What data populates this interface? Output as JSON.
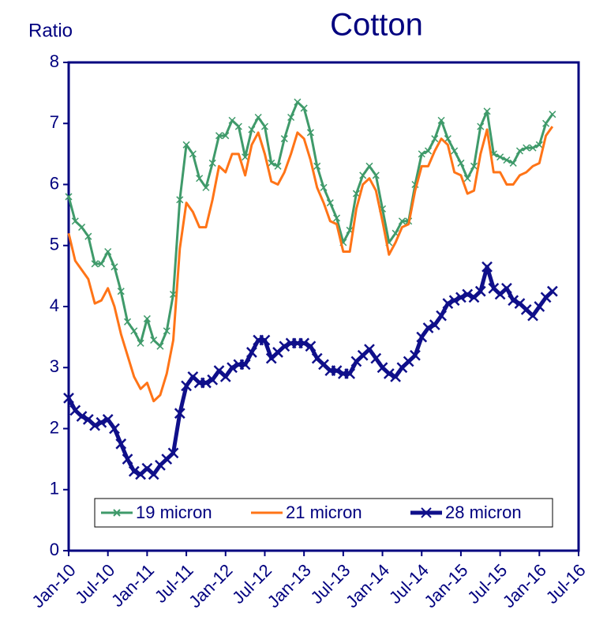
{
  "chart_data": {
    "type": "line",
    "title": "Cotton",
    "y_label": "Ratio",
    "categories": [
      "Jan-10",
      null,
      null,
      null,
      null,
      null,
      "Jul-10",
      null,
      null,
      null,
      null,
      null,
      "Jan-11",
      null,
      null,
      null,
      null,
      null,
      "Jul-11",
      null,
      null,
      null,
      null,
      null,
      "Jan-12",
      null,
      null,
      null,
      null,
      null,
      "Jul-12",
      null,
      null,
      null,
      null,
      null,
      "Jan-13",
      null,
      null,
      null,
      null,
      null,
      "Jul-13",
      null,
      null,
      null,
      null,
      null,
      "Jan-14",
      null,
      null,
      null,
      null,
      null,
      "Jul-14",
      null,
      null,
      null,
      null,
      null,
      "Jan-15",
      null,
      null,
      null,
      null,
      null,
      "Jul-15",
      null,
      null,
      null,
      null,
      null,
      "Jan-16",
      null,
      null,
      null,
      null,
      null,
      "Jul-16"
    ],
    "series": [
      {
        "name": "19 micron",
        "color": "#3f9a6a",
        "marker": "small-x",
        "values": [
          5.8,
          5.4,
          5.3,
          5.15,
          4.7,
          4.7,
          4.9,
          4.65,
          4.25,
          3.75,
          3.6,
          3.4,
          3.8,
          3.45,
          3.35,
          3.6,
          4.2,
          5.75,
          6.65,
          6.5,
          6.1,
          5.95,
          6.35,
          6.8,
          6.8,
          7.05,
          6.95,
          6.45,
          6.9,
          7.1,
          6.95,
          6.35,
          6.3,
          6.75,
          7.1,
          7.35,
          7.25,
          6.85,
          6.3,
          5.95,
          5.7,
          5.45,
          5.05,
          5.25,
          5.85,
          6.15,
          6.3,
          6.15,
          5.6,
          5.05,
          5.2,
          5.4,
          5.4,
          6.0,
          6.5,
          6.55,
          6.75,
          7.05,
          6.75,
          6.55,
          6.35,
          6.1,
          6.3,
          6.95,
          7.2,
          6.5,
          6.45,
          6.4,
          6.35,
          6.55,
          6.6,
          6.6,
          6.65,
          7.0,
          7.15,
          null,
          null,
          null,
          null
        ]
      },
      {
        "name": "21 micron",
        "color": "#ff7417",
        "marker": "none",
        "values": [
          5.2,
          4.75,
          4.6,
          4.45,
          4.05,
          4.1,
          4.3,
          4.0,
          3.55,
          3.2,
          2.85,
          2.65,
          2.75,
          2.45,
          2.55,
          2.9,
          3.45,
          4.95,
          5.7,
          5.55,
          5.3,
          5.3,
          5.75,
          6.3,
          6.2,
          6.5,
          6.5,
          6.15,
          6.65,
          6.85,
          6.5,
          6.05,
          6.0,
          6.2,
          6.5,
          6.85,
          6.75,
          6.4,
          5.95,
          5.7,
          5.4,
          5.35,
          4.9,
          4.9,
          5.6,
          6.0,
          6.1,
          5.9,
          5.4,
          4.85,
          5.05,
          5.3,
          5.35,
          5.9,
          6.3,
          6.3,
          6.55,
          6.75,
          6.65,
          6.2,
          6.15,
          5.85,
          5.9,
          6.5,
          6.9,
          6.2,
          6.2,
          6.0,
          6.0,
          6.15,
          6.2,
          6.3,
          6.35,
          6.8,
          6.95,
          null,
          null,
          null,
          null
        ]
      },
      {
        "name": "28 micron",
        "color": "#0f0f8a",
        "marker": "large-x",
        "values": [
          2.5,
          2.3,
          2.2,
          2.15,
          2.05,
          2.1,
          2.15,
          2.0,
          1.75,
          1.5,
          1.3,
          1.25,
          1.35,
          1.25,
          1.4,
          1.5,
          1.6,
          2.25,
          2.7,
          2.85,
          2.75,
          2.75,
          2.8,
          2.95,
          2.85,
          3.0,
          3.05,
          3.05,
          3.25,
          3.45,
          3.45,
          3.15,
          3.25,
          3.35,
          3.4,
          3.4,
          3.4,
          3.35,
          3.15,
          3.05,
          2.95,
          2.95,
          2.9,
          2.9,
          3.1,
          3.2,
          3.3,
          3.15,
          3.0,
          2.9,
          2.85,
          3.0,
          3.1,
          3.2,
          3.5,
          3.65,
          3.7,
          3.85,
          4.05,
          4.1,
          4.15,
          4.2,
          4.15,
          4.25,
          4.65,
          4.3,
          4.2,
          4.3,
          4.1,
          4.05,
          3.95,
          3.85,
          4.0,
          4.15,
          4.25,
          null,
          null,
          null,
          null
        ]
      }
    ],
    "ylim": [
      0,
      8
    ],
    "yticks": [
      0,
      1,
      2,
      3,
      4,
      5,
      6,
      7,
      8
    ],
    "grid": false,
    "legend": "lower center"
  }
}
